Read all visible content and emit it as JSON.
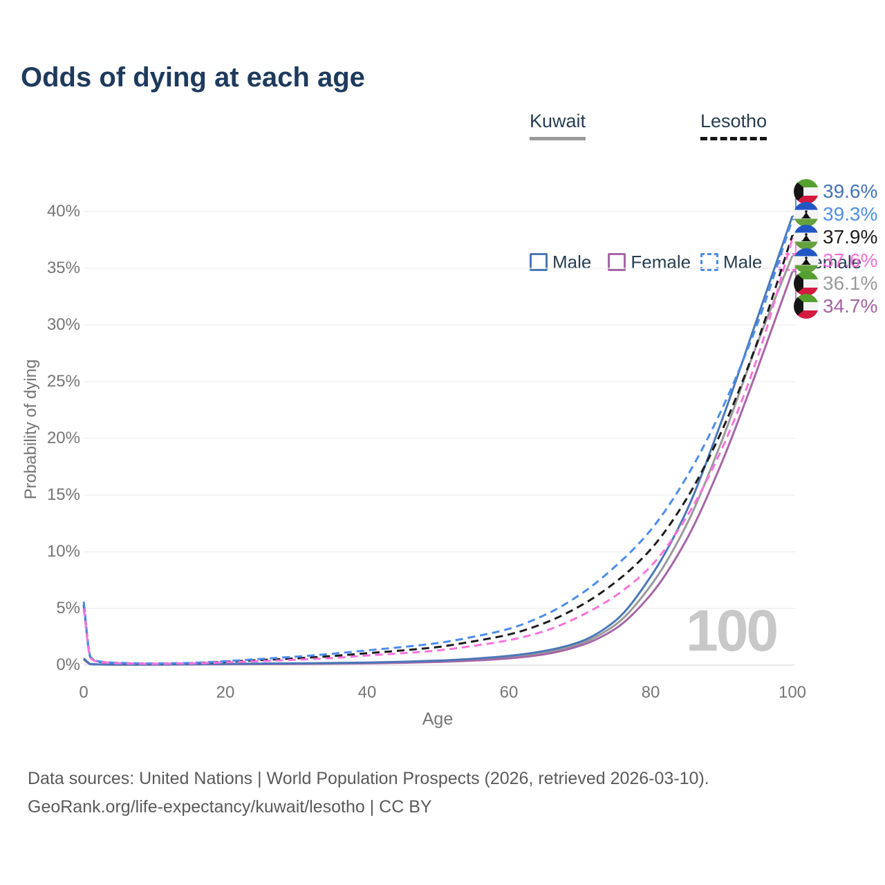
{
  "title": "Odds of dying at each age",
  "legend": {
    "groups": [
      {
        "country": "Kuwait",
        "line_style": "solid",
        "items": [
          {
            "label": "Male",
            "color": "#4a78b8",
            "dashed": false
          },
          {
            "label": "Female",
            "color": "#a666a6",
            "dashed": false
          }
        ]
      },
      {
        "country": "Lesotho",
        "line_style": "dashed",
        "items": [
          {
            "label": "Male",
            "color": "#4b8cee",
            "dashed": true
          },
          {
            "label": "Female",
            "color": "#f973dc",
            "dashed": true
          }
        ]
      }
    ]
  },
  "chart_data": {
    "type": "line",
    "title": "Odds of dying at each age",
    "xlabel": "Age",
    "ylabel": "Probability of dying",
    "xlim": [
      0,
      100
    ],
    "ylim": [
      0,
      41.5
    ],
    "x_ticks": [
      0,
      20,
      40,
      60,
      80,
      100
    ],
    "y_ticks": [
      0,
      5,
      10,
      15,
      20,
      25,
      30,
      35,
      40
    ],
    "y_tick_suffix": "%",
    "grid": "horizontal",
    "age_watermark": "100",
    "ages": [
      0,
      1,
      2,
      5,
      10,
      15,
      20,
      25,
      30,
      35,
      40,
      45,
      50,
      55,
      60,
      65,
      70,
      75,
      80,
      85,
      90,
      95,
      100
    ],
    "series": [
      {
        "name": "Kuwait both sexes",
        "country": "Kuwait",
        "sex": "both",
        "color": "#9a9a9a",
        "dash": false,
        "end_label": "36.1%",
        "values": [
          0.55,
          0.09,
          0.06,
          0.05,
          0.05,
          0.08,
          0.1,
          0.12,
          0.14,
          0.16,
          0.2,
          0.26,
          0.34,
          0.49,
          0.71,
          1.1,
          1.88,
          3.55,
          7.0,
          12.3,
          19.7,
          28.3,
          36.1
        ]
      },
      {
        "name": "Kuwait female",
        "country": "Kuwait",
        "sex": "female",
        "color": "#a666a6",
        "dash": false,
        "end_label": "34.7%",
        "values": [
          0.5,
          0.08,
          0.06,
          0.04,
          0.05,
          0.06,
          0.08,
          0.09,
          0.11,
          0.13,
          0.16,
          0.21,
          0.28,
          0.4,
          0.6,
          0.95,
          1.7,
          3.2,
          6.2,
          11.0,
          17.8,
          26.0,
          34.7
        ]
      },
      {
        "name": "Kuwait male",
        "country": "Kuwait",
        "sex": "male",
        "color": "#4a78b8",
        "dash": false,
        "end_label": "39.6%",
        "values": [
          0.6,
          0.1,
          0.07,
          0.05,
          0.06,
          0.09,
          0.12,
          0.14,
          0.16,
          0.19,
          0.23,
          0.3,
          0.4,
          0.57,
          0.82,
          1.25,
          2.05,
          3.9,
          7.8,
          13.5,
          21.5,
          30.5,
          39.6
        ]
      },
      {
        "name": "Lesotho both sexes",
        "country": "Lesotho",
        "sex": "both",
        "color": "#1c1c1c",
        "dash": true,
        "end_label": "37.9%",
        "values": [
          5.3,
          0.65,
          0.32,
          0.18,
          0.13,
          0.17,
          0.3,
          0.45,
          0.6,
          0.8,
          1.05,
          1.3,
          1.6,
          2.1,
          2.7,
          3.7,
          5.2,
          7.3,
          10.2,
          14.6,
          20.6,
          28.4,
          37.9
        ]
      },
      {
        "name": "Lesotho male",
        "country": "Lesotho",
        "sex": "male",
        "color": "#4b8cee",
        "dash": true,
        "end_label": "39.3%",
        "values": [
          5.6,
          0.7,
          0.35,
          0.2,
          0.15,
          0.2,
          0.35,
          0.55,
          0.75,
          1.0,
          1.3,
          1.6,
          1.95,
          2.5,
          3.2,
          4.4,
          6.2,
          8.7,
          11.9,
          16.5,
          22.5,
          30.0,
          39.3
        ]
      },
      {
        "name": "Lesotho female",
        "country": "Lesotho",
        "sex": "female",
        "color": "#f973dc",
        "dash": true,
        "end_label": "37.6%",
        "values": [
          5.0,
          0.6,
          0.3,
          0.16,
          0.12,
          0.15,
          0.25,
          0.35,
          0.48,
          0.62,
          0.85,
          1.05,
          1.3,
          1.7,
          2.2,
          3.0,
          4.3,
          6.1,
          8.7,
          13.0,
          19.0,
          27.0,
          37.6
        ]
      }
    ]
  },
  "end_labels": [
    {
      "flag": "kuwait",
      "value": "39.6%",
      "series": "Kuwait male",
      "color": "#4273b8"
    },
    {
      "flag": "lesotho",
      "value": "39.3%",
      "series": "Lesotho male",
      "color": "#4d8fe8"
    },
    {
      "flag": "lesotho",
      "value": "37.9%",
      "series": "Lesotho both sexes",
      "color": "#1d1d1d"
    },
    {
      "flag": "lesotho",
      "value": "37.6%",
      "series": "Lesotho female",
      "color": "#fb6ed8"
    },
    {
      "flag": "kuwait",
      "value": "36.1%",
      "series": "Kuwait both sexes",
      "color": "#9b9b9b"
    },
    {
      "flag": "kuwait",
      "value": "34.7%",
      "series": "Kuwait female",
      "color": "#a263a2"
    }
  ],
  "flag_colors": {
    "kuwait": {
      "green": "#55a02e",
      "white": "#f4f4f4",
      "red": "#d6193f",
      "black": "#151515"
    },
    "lesotho": {
      "blue": "#2256c4",
      "white": "#f4f4f4",
      "green": "#63a23c",
      "black": "#111111"
    }
  },
  "footer": {
    "line1": "Data sources: United Nations | World Population Prospects (2026, retrieved 2026-03-10).",
    "line2": "GeoRank.org/life-expectancy/kuwait/lesotho | CC BY"
  }
}
